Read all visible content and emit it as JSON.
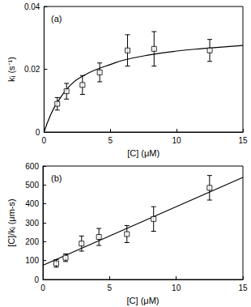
{
  "chart_data": [
    {
      "type": "scatter",
      "title": "(a)",
      "x_label": "[C] (μM)",
      "y_label": "kᵢ (s⁻¹)",
      "xlim": [
        0,
        15
      ],
      "xticks": [
        0,
        5,
        10,
        15
      ],
      "ylim": [
        0,
        0.04
      ],
      "yticks": [
        0,
        0.02,
        0.04
      ],
      "series": [
        {
          "type": "scatter",
          "marker": "square",
          "color": "#000000",
          "x": [
            1.0,
            1.7,
            2.9,
            4.2,
            6.3,
            8.3,
            12.5
          ],
          "values": [
            0.009,
            0.013,
            0.015,
            0.019,
            0.026,
            0.0265,
            0.026
          ],
          "errors": [
            0.002,
            0.0025,
            0.003,
            0.003,
            0.005,
            0.0055,
            0.0035
          ]
        },
        {
          "type": "line",
          "line_style": "solid",
          "color": "#000000",
          "x": [
            0,
            0.5,
            1,
            2,
            3,
            4,
            5,
            6,
            8,
            10,
            12,
            15
          ],
          "values": [
            0,
            0.0055,
            0.0094,
            0.015,
            0.018,
            0.02,
            0.0215,
            0.0229,
            0.0246,
            0.0258,
            0.0266,
            0.0276
          ]
        }
      ]
    },
    {
      "type": "scatter",
      "title": "(b)",
      "x_label": "[C] (μM)",
      "y_label": "[C]/kᵢ (μm-s)",
      "xlim": [
        0,
        15
      ],
      "xticks": [
        0,
        5,
        10,
        15
      ],
      "ylim": [
        0,
        600
      ],
      "yticks": [
        0,
        100,
        200,
        300,
        400,
        500,
        600
      ],
      "series": [
        {
          "type": "scatter",
          "marker": "square",
          "color": "#000000",
          "x": [
            1.0,
            1.7,
            2.9,
            4.2,
            6.3,
            8.3,
            12.5
          ],
          "values": [
            85,
            115,
            190,
            225,
            240,
            320,
            485
          ],
          "errors": [
            20,
            20,
            40,
            45,
            45,
            65,
            65
          ]
        },
        {
          "type": "line",
          "line_style": "solid",
          "color": "#000000",
          "x": [
            0,
            15
          ],
          "values": [
            75,
            540
          ]
        }
      ]
    }
  ]
}
